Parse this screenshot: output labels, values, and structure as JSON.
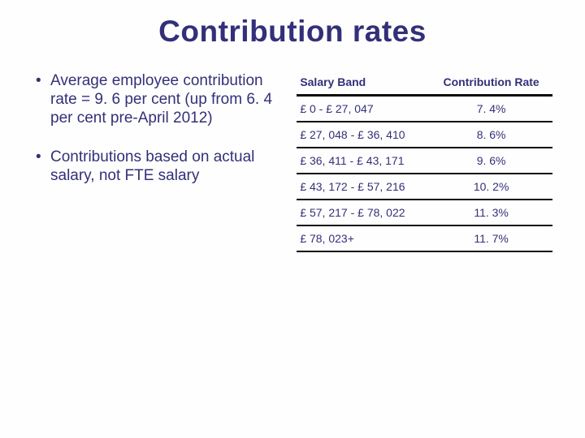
{
  "title": "Contribution rates",
  "title_fontsize": 37,
  "title_color": "#333079",
  "body_color": "#333079",
  "body_fontsize": 19,
  "background_color": "#fefefe",
  "bullets": [
    "Average employee contribution rate = 9. 6 per cent (up from 6. 4 per cent pre-April 2012)",
    "Contributions based on actual salary, not FTE salary"
  ],
  "table": {
    "type": "table",
    "border_color": "#0a0a0a",
    "header_border_width": 3,
    "row_border_width": 2,
    "columns": [
      "Salary Band",
      "Contribution Rate"
    ],
    "column_align": [
      "left",
      "center"
    ],
    "rows": [
      [
        "£ 0 - £ 27, 047",
        "7. 4%"
      ],
      [
        "£ 27, 048 - £ 36, 410",
        "8. 6%"
      ],
      [
        "£ 36, 411 - £ 43, 171",
        "9. 6%"
      ],
      [
        "£ 43, 172 - £ 57, 216",
        "10. 2%"
      ],
      [
        "£ 57, 217 - £ 78, 022",
        "11. 3%"
      ],
      [
        "£ 78, 023+",
        "11. 7%"
      ]
    ]
  }
}
